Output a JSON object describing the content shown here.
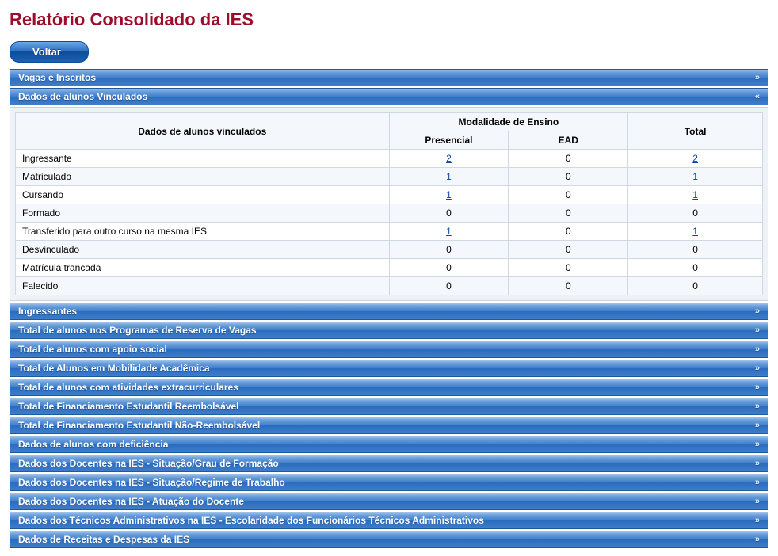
{
  "page": {
    "title": "Relatório Consolidado da IES",
    "back_button": "Voltar"
  },
  "colors": {
    "title": "#9c0d2c",
    "bar_gradient_top": "#a6c6ea",
    "bar_gradient_mid": "#3e7dc9",
    "bar_gradient_bottom": "#2b6cbf",
    "bar_border": "#1c5aa0",
    "panel_bg": "#eef2f6",
    "panel_border": "#c7d3e0",
    "table_header_bg": "#f4f7fb",
    "cell_border": "#cfd8e3",
    "link": "#0645ad"
  },
  "expanded_panel": {
    "title": "Dados de alunos Vinculados",
    "table": {
      "header_col1": "Dados de alunos vinculados",
      "header_group": "Modalidade de Ensino",
      "header_presencial": "Presencial",
      "header_ead": "EAD",
      "header_total": "Total",
      "rows": [
        {
          "label": "Ingressante",
          "presencial": "2",
          "presencial_link": true,
          "ead": "0",
          "ead_link": false,
          "total": "2",
          "total_link": true
        },
        {
          "label": "Matriculado",
          "presencial": "1",
          "presencial_link": true,
          "ead": "0",
          "ead_link": false,
          "total": "1",
          "total_link": true
        },
        {
          "label": "Cursando",
          "presencial": "1",
          "presencial_link": true,
          "ead": "0",
          "ead_link": false,
          "total": "1",
          "total_link": true
        },
        {
          "label": "Formado",
          "presencial": "0",
          "presencial_link": false,
          "ead": "0",
          "ead_link": false,
          "total": "0",
          "total_link": false
        },
        {
          "label": "Transferido para outro curso na mesma IES",
          "presencial": "1",
          "presencial_link": true,
          "ead": "0",
          "ead_link": false,
          "total": "1",
          "total_link": true
        },
        {
          "label": "Desvinculado",
          "presencial": "0",
          "presencial_link": false,
          "ead": "0",
          "ead_link": false,
          "total": "0",
          "total_link": false
        },
        {
          "label": "Matrícula trancada",
          "presencial": "0",
          "presencial_link": false,
          "ead": "0",
          "ead_link": false,
          "total": "0",
          "total_link": false
        },
        {
          "label": "Falecido",
          "presencial": "0",
          "presencial_link": false,
          "ead": "0",
          "ead_link": false,
          "total": "0",
          "total_link": false
        }
      ],
      "col_widths_pct": [
        50,
        16,
        16,
        18
      ]
    }
  },
  "accordion_top": [
    {
      "title": "Vagas e Inscritos",
      "expanded": false
    }
  ],
  "accordion_bottom": [
    {
      "title": "Ingressantes"
    },
    {
      "title": "Total de alunos nos Programas de Reserva de Vagas"
    },
    {
      "title": "Total de alunos com apoio social"
    },
    {
      "title": "Total de Alunos em Mobilidade Acadêmica"
    },
    {
      "title": "Total de alunos com atividades extracurriculares"
    },
    {
      "title": "Total de Financiamento Estudantil Reembolsável"
    },
    {
      "title": "Total de Financiamento Estudantil Não-Reembolsável"
    },
    {
      "title": "Dados de alunos com deficiência"
    },
    {
      "title": "Dados dos Docentes na IES - Situação/Grau de Formação"
    },
    {
      "title": "Dados dos Docentes na IES - Situação/Regime de Trabalho"
    },
    {
      "title": "Dados dos Docentes na IES - Atuação do Docente"
    },
    {
      "title": "Dados dos Técnicos Administrativos na IES - Escolaridade dos Funcionários Técnicos Administrativos"
    },
    {
      "title": "Dados de Receitas e Despesas da IES"
    }
  ],
  "chevrons": {
    "collapsed": "»",
    "expanded": "«"
  }
}
